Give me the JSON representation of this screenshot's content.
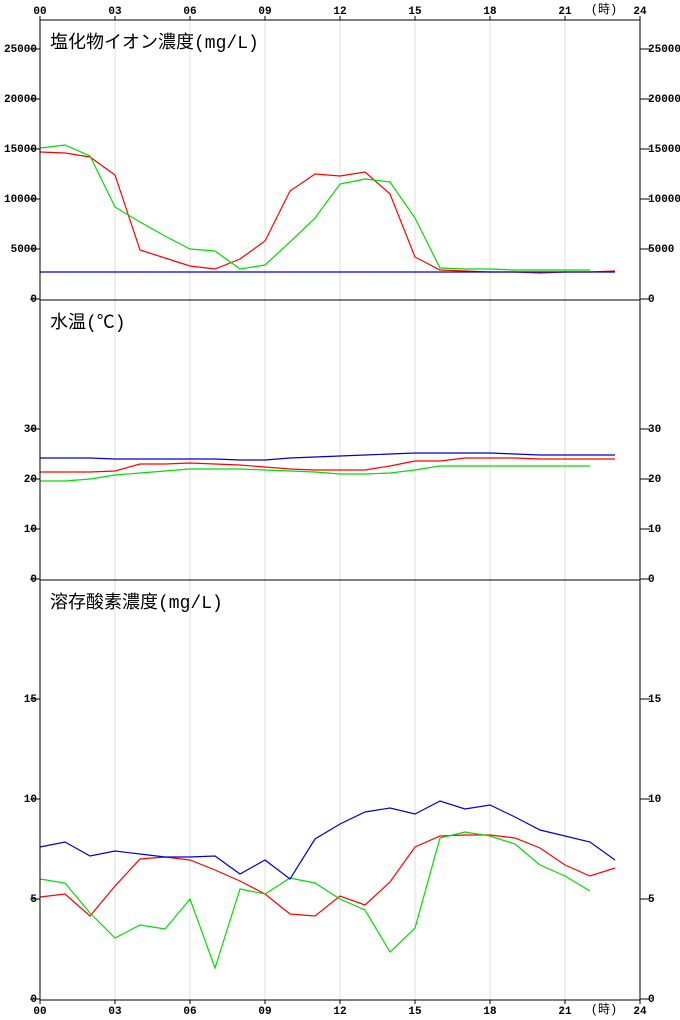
{
  "chart_data": [
    {
      "type": "line",
      "title": "塩化物イオン濃度(mg/L)",
      "xlabel": "(時)",
      "x": [
        0,
        1,
        2,
        3,
        4,
        5,
        6,
        7,
        8,
        9,
        10,
        11,
        12,
        13,
        14,
        15,
        16,
        17,
        18,
        19,
        20,
        21,
        22,
        23
      ],
      "xlim": [
        0,
        24
      ],
      "xticks": [
        {
          "value": 0,
          "label": "00"
        },
        {
          "value": 3,
          "label": "03"
        },
        {
          "value": 6,
          "label": "06"
        },
        {
          "value": 9,
          "label": "09"
        },
        12,
        15,
        18,
        21,
        24
      ],
      "ylim": [
        0,
        28000
      ],
      "yticks": [
        0,
        5000,
        10000,
        15000,
        20000,
        25000
      ],
      "series": [
        {
          "color": "#ff0000",
          "values": [
            14700,
            14600,
            14200,
            12400,
            4900,
            4100,
            3300,
            3000,
            4000,
            5800,
            10800,
            12500,
            12300,
            12700,
            10500,
            4200,
            2900,
            2800,
            2700,
            2700,
            2600,
            2700,
            2700,
            2800
          ]
        },
        {
          "color": "#00dd00",
          "values": [
            15100,
            15400,
            14300,
            9200,
            7700,
            6300,
            5000,
            4800,
            3000,
            3400,
            5700,
            8100,
            11500,
            12000,
            11700,
            8100,
            3100,
            3000,
            3000,
            2900,
            2900,
            2900,
            2900,
            null
          ]
        },
        {
          "color": "#0000cc",
          "values": [
            2700,
            2700,
            2700,
            2700,
            2700,
            2700,
            2700,
            2700,
            2700,
            2700,
            2700,
            2700,
            2700,
            2700,
            2700,
            2700,
            2700,
            2700,
            2700,
            2700,
            2700,
            2700,
            2700,
            2700
          ]
        }
      ]
    },
    {
      "type": "line",
      "title": "水温(℃)",
      "x": [
        0,
        1,
        2,
        3,
        4,
        5,
        6,
        7,
        8,
        9,
        10,
        11,
        12,
        13,
        14,
        15,
        16,
        17,
        18,
        19,
        20,
        21,
        22,
        23
      ],
      "xlim": [
        0,
        24
      ],
      "xticks": [
        0,
        3,
        6,
        9,
        12,
        15,
        18,
        21,
        24
      ],
      "ylim": [
        0,
        56
      ],
      "yticks": [
        0,
        10,
        20,
        30
      ],
      "series": [
        {
          "color": "#ff0000",
          "values": [
            21.4,
            21.4,
            21.4,
            21.6,
            23,
            23,
            23.2,
            23,
            22.8,
            22.4,
            22,
            21.8,
            21.8,
            21.8,
            22.6,
            23.6,
            23.6,
            24.2,
            24.2,
            24.2,
            24,
            24,
            24,
            24
          ]
        },
        {
          "color": "#00dd00",
          "values": [
            19.6,
            19.6,
            20,
            20.8,
            21.2,
            21.6,
            22,
            22,
            22,
            21.8,
            21.6,
            21.4,
            21,
            21,
            21.2,
            21.8,
            22.6,
            22.6,
            22.6,
            22.6,
            22.6,
            22.6,
            22.6,
            null
          ]
        },
        {
          "color": "#0000cc",
          "values": [
            24.2,
            24.2,
            24.2,
            24,
            24,
            24,
            24,
            24,
            23.8,
            23.8,
            24.2,
            24.4,
            24.6,
            24.8,
            25,
            25.2,
            25.2,
            25.2,
            25.2,
            25,
            24.8,
            24.8,
            24.8,
            24.8
          ]
        }
      ]
    },
    {
      "type": "line",
      "title": "溶存酸素濃度(mg/L)",
      "xlabel": "(時)",
      "x": [
        0,
        1,
        2,
        3,
        4,
        5,
        6,
        7,
        8,
        9,
        10,
        11,
        12,
        13,
        14,
        15,
        16,
        17,
        18,
        19,
        20,
        21,
        22,
        23
      ],
      "xlim": [
        0,
        24
      ],
      "xticks": [
        {
          "value": 0,
          "label": "00"
        },
        {
          "value": 3,
          "label": "03"
        },
        {
          "value": 6,
          "label": "06"
        },
        {
          "value": 9,
          "label": "09"
        },
        12,
        15,
        18,
        21,
        24
      ],
      "ylim": [
        0,
        21
      ],
      "yticks": [
        0,
        5,
        10,
        15
      ],
      "series": [
        {
          "color": "#ff0000",
          "values": [
            5.1,
            5.25,
            4.15,
            5.65,
            7.0,
            7.1,
            6.95,
            6.45,
            5.9,
            5.25,
            4.25,
            4.15,
            5.15,
            4.7,
            5.85,
            7.6,
            8.15,
            8.2,
            8.2,
            8.05,
            7.55,
            6.7,
            6.15,
            6.55
          ]
        },
        {
          "color": "#00dd00",
          "values": [
            6.0,
            5.8,
            4.3,
            3.05,
            3.7,
            3.5,
            5.0,
            1.55,
            5.5,
            5.25,
            6.05,
            5.8,
            5.0,
            4.45,
            2.35,
            3.55,
            8.05,
            8.35,
            8.15,
            7.75,
            6.7,
            6.15,
            5.4,
            null
          ]
        },
        {
          "color": "#0000cc",
          "values": [
            7.6,
            7.85,
            7.15,
            7.4,
            7.25,
            7.1,
            7.1,
            7.15,
            6.25,
            6.95,
            6.0,
            8.0,
            8.75,
            9.35,
            9.55,
            9.25,
            9.9,
            9.5,
            9.7,
            9.1,
            8.45,
            8.15,
            7.85,
            6.95
          ]
        }
      ]
    }
  ]
}
